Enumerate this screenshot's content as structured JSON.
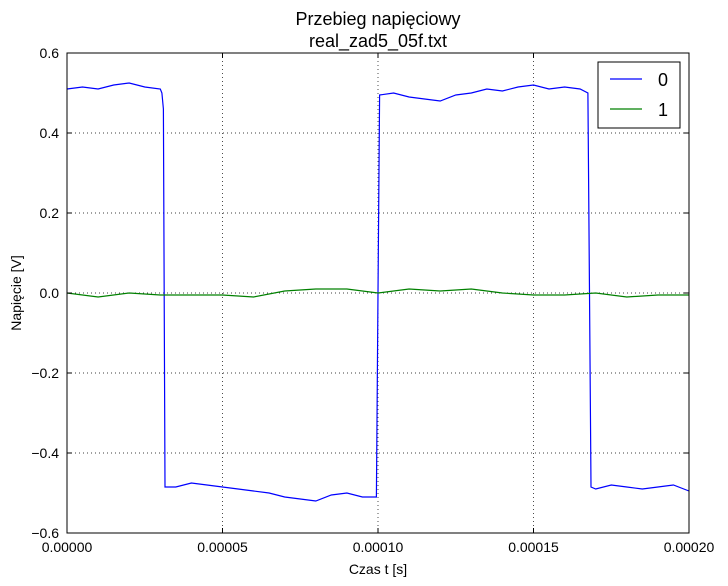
{
  "chart_data": {
    "type": "line",
    "title": "Przebieg napięciowy",
    "subtitle": "real_zad5_05f.txt",
    "xlabel": "Czas t [s]",
    "ylabel": "Napięcie [V]",
    "xlim": [
      0,
      0.0002
    ],
    "ylim": [
      -0.6,
      0.6
    ],
    "x_ticks": [
      0,
      5e-05,
      0.0001,
      0.00015,
      0.0002
    ],
    "x_tick_labels": [
      "0.00000",
      "0.00005",
      "0.00010",
      "0.00015",
      "0.00020"
    ],
    "y_ticks": [
      -0.6,
      -0.4,
      -0.2,
      0.0,
      0.2,
      0.4,
      0.6
    ],
    "y_tick_labels": [
      "−0.6",
      "−0.4",
      "−0.2",
      "0.0",
      "0.2",
      "0.4",
      "0.6"
    ],
    "grid": true,
    "legend_position": "top-right",
    "series": [
      {
        "name": "0",
        "color": "#0000ff",
        "x": [
          0,
          5e-06,
          1e-05,
          1.5e-05,
          2e-05,
          2.5e-05,
          3e-05,
          3.05e-05,
          3.1e-05,
          3.15e-05,
          3.5e-05,
          4e-05,
          4.5e-05,
          5e-05,
          5.5e-05,
          6e-05,
          6.5e-05,
          7e-05,
          7.5e-05,
          8e-05,
          8.5e-05,
          9e-05,
          9.5e-05,
          9.95e-05,
          0.0001,
          0.0001005,
          0.000105,
          0.00011,
          0.000115,
          0.00012,
          0.000125,
          0.00013,
          0.000135,
          0.00014,
          0.000145,
          0.00015,
          0.000155,
          0.00016,
          0.000165,
          0.0001675,
          0.000168,
          0.0001685,
          0.00017,
          0.000175,
          0.00018,
          0.000185,
          0.00019,
          0.000195,
          0.0002
        ],
        "y": [
          0.51,
          0.515,
          0.51,
          0.52,
          0.525,
          0.515,
          0.51,
          0.5,
          0.46,
          -0.485,
          -0.485,
          -0.475,
          -0.48,
          -0.485,
          -0.49,
          -0.495,
          -0.5,
          -0.51,
          -0.515,
          -0.52,
          -0.505,
          -0.5,
          -0.51,
          -0.51,
          0.0,
          0.495,
          0.5,
          0.49,
          0.485,
          0.48,
          0.495,
          0.5,
          0.51,
          0.505,
          0.515,
          0.52,
          0.51,
          0.515,
          0.51,
          0.5,
          0.0,
          -0.485,
          -0.49,
          -0.48,
          -0.485,
          -0.49,
          -0.485,
          -0.48,
          -0.495
        ]
      },
      {
        "name": "1",
        "color": "#008000",
        "x": [
          0,
          1e-05,
          2e-05,
          3e-05,
          4e-05,
          5e-05,
          6e-05,
          7e-05,
          8e-05,
          9e-05,
          0.0001,
          0.00011,
          0.00012,
          0.00013,
          0.00014,
          0.00015,
          0.00016,
          0.00017,
          0.00018,
          0.00019,
          0.0002
        ],
        "y": [
          0.0,
          -0.01,
          0.0,
          -0.005,
          -0.005,
          -0.005,
          -0.01,
          0.005,
          0.01,
          0.01,
          0.0,
          0.01,
          0.005,
          0.01,
          0.0,
          -0.005,
          -0.005,
          0.0,
          -0.01,
          -0.005,
          -0.005
        ]
      }
    ]
  }
}
